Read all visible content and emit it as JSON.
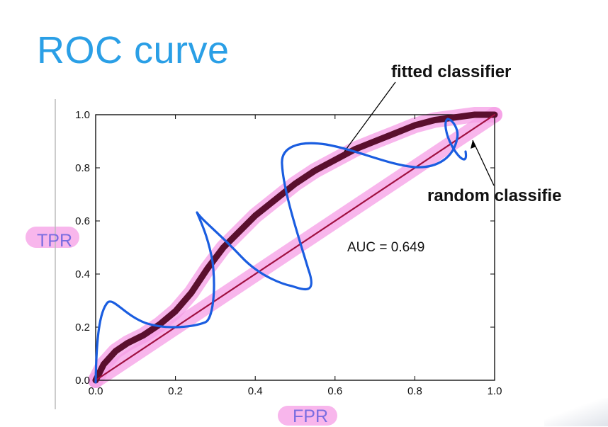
{
  "slide": {
    "title": "ROC curve"
  },
  "annotations": {
    "fitted": "fitted classifier",
    "random": "random classifie",
    "auc": "AUC = 0.649"
  },
  "colors": {
    "title": "#2a9fe6",
    "fitted_curve": "#5a0f2e",
    "random_line": "#a01040",
    "highlight": "#f59de6",
    "pen": "#1a5de0",
    "handwriting": "#7a6de0"
  },
  "chart_data": {
    "type": "line",
    "title": "",
    "xlabel": "FPR",
    "ylabel": "TPR",
    "xlim": [
      0.0,
      1.0
    ],
    "ylim": [
      0.0,
      1.0
    ],
    "x_ticks": [
      "0.0",
      "0.2",
      "0.4",
      "0.6",
      "0.8",
      "1.0"
    ],
    "y_ticks": [
      "0.0",
      "0.2",
      "0.4",
      "0.6",
      "0.8",
      "1.0"
    ],
    "grid": false,
    "series": [
      {
        "name": "fitted classifier",
        "x": [
          0.0,
          0.02,
          0.05,
          0.08,
          0.12,
          0.16,
          0.2,
          0.24,
          0.28,
          0.32,
          0.36,
          0.4,
          0.45,
          0.5,
          0.55,
          0.6,
          0.65,
          0.7,
          0.75,
          0.8,
          0.85,
          0.9,
          0.95,
          1.0
        ],
        "y": [
          0.0,
          0.06,
          0.11,
          0.14,
          0.17,
          0.21,
          0.26,
          0.33,
          0.42,
          0.5,
          0.56,
          0.62,
          0.68,
          0.74,
          0.79,
          0.83,
          0.87,
          0.9,
          0.93,
          0.96,
          0.98,
          0.99,
          1.0,
          1.0
        ]
      },
      {
        "name": "random classifier",
        "x": [
          0.0,
          1.0
        ],
        "y": [
          0.0,
          1.0
        ]
      }
    ],
    "annotations": [
      "fitted classifier",
      "random classifie",
      "AUC = 0.649"
    ]
  }
}
